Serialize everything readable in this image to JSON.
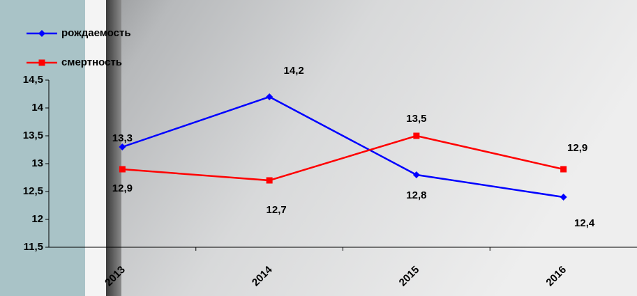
{
  "chart_data": {
    "type": "line",
    "categories": [
      "2013",
      "2014",
      "2015",
      "2016"
    ],
    "series": [
      {
        "name": "рождаемость",
        "color": "#0000ff",
        "marker": "diamond",
        "values": [
          13.3,
          14.2,
          12.8,
          12.4
        ],
        "value_labels": [
          "13,3",
          "14,2",
          "12,8",
          "12,4"
        ]
      },
      {
        "name": "смертность",
        "color": "#ff0000",
        "marker": "square",
        "values": [
          12.9,
          12.7,
          13.5,
          12.9
        ],
        "value_labels": [
          "12,9",
          "12,7",
          "13,5",
          "12,9"
        ]
      }
    ],
    "ylim": [
      11.5,
      14.5
    ],
    "yticks": [
      {
        "value": 11.5,
        "label": "11,5"
      },
      12,
      {
        "value": 12.5,
        "label": "12,5"
      },
      13,
      {
        "value": 13.5,
        "label": "13,5"
      },
      14,
      {
        "value": 14.5,
        "label": "14,5"
      }
    ],
    "legend": "top-left"
  }
}
